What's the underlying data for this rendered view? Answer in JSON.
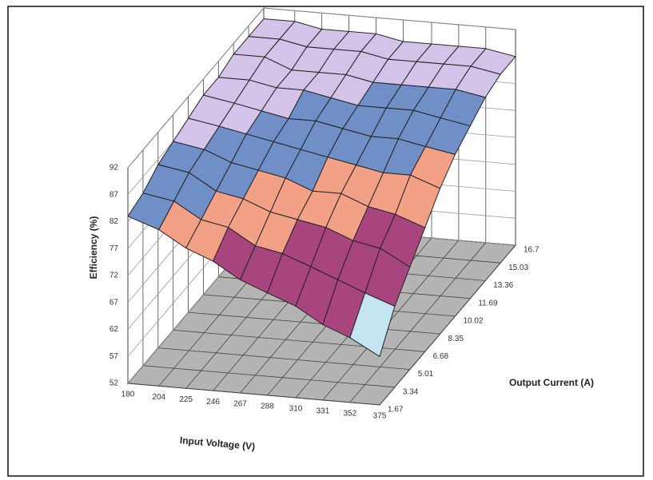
{
  "chart_data": {
    "type": "surface",
    "x_label": "Input Voltage (V)",
    "y_label": "Output Current (A)",
    "z_label": "Efficiency (%)",
    "x": [
      180,
      204,
      225,
      246,
      267,
      288,
      310,
      331,
      352,
      375
    ],
    "y": [
      1.67,
      3.34,
      5.01,
      6.68,
      8.35,
      10.02,
      11.69,
      13.36,
      15.03,
      16.7
    ],
    "z": [
      [
        83,
        81,
        78,
        76,
        73,
        71,
        69,
        66,
        64,
        61
      ],
      [
        84,
        83,
        80,
        79,
        76,
        75,
        73,
        71,
        69,
        67
      ],
      [
        86,
        85,
        82,
        81,
        79,
        78,
        77,
        75,
        74,
        71
      ],
      [
        87,
        86,
        84,
        83,
        82,
        80,
        80,
        78,
        77,
        75
      ],
      [
        88,
        87,
        86,
        85,
        84,
        83,
        82,
        81,
        81,
        79
      ],
      [
        89,
        88,
        87,
        86,
        86,
        85,
        84,
        84,
        83,
        82
      ],
      [
        89,
        89,
        88,
        88,
        87,
        86,
        86,
        86,
        85,
        84
      ],
      [
        90,
        90,
        88,
        88,
        88,
        87,
        87,
        87,
        87,
        86
      ],
      [
        90,
        90,
        89,
        89,
        89,
        88,
        88,
        88,
        88,
        87
      ],
      [
        90,
        90,
        89,
        89,
        89,
        88,
        88,
        88,
        88,
        87
      ]
    ],
    "xlim": [
      180,
      375
    ],
    "ylim": [
      1.67,
      16.7
    ],
    "zlim": [
      52,
      92
    ],
    "zticks": [
      52,
      57,
      62,
      67,
      72,
      77,
      82,
      87,
      92
    ],
    "interval_colors": [
      "#c4e6f2",
      "#c4e6f2",
      "#c4e6f2",
      "#a8457e",
      "#a8457e",
      "#f2a187",
      "#6f8fc6",
      "#d3c3e8"
    ],
    "floor_color": "#b4b4b4",
    "grid": true
  }
}
